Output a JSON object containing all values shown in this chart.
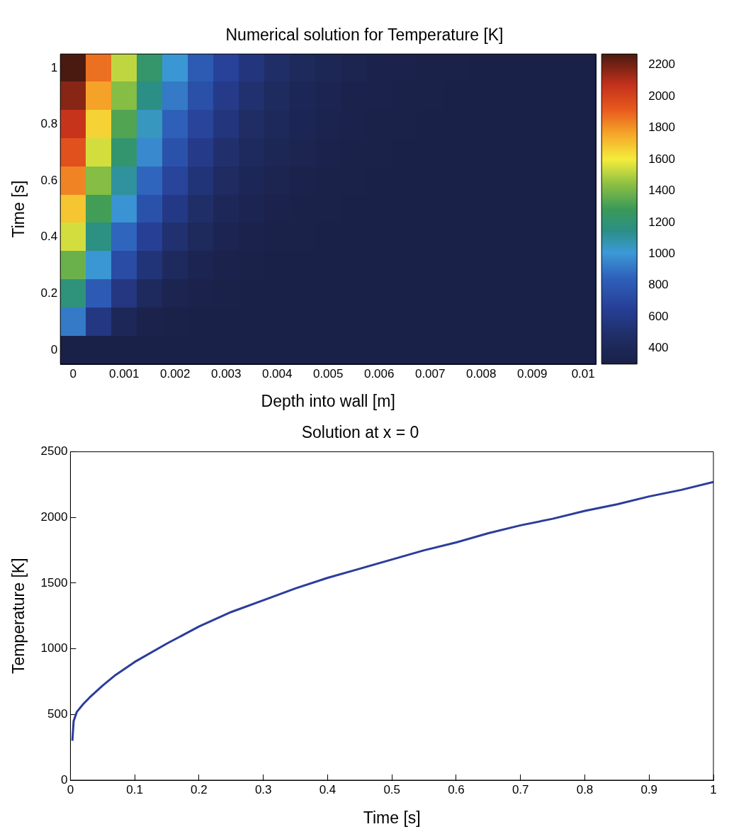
{
  "chart_data": [
    {
      "type": "heatmap",
      "title": "Numerical solution for Temperature [K]",
      "xlabel": "Depth into wall [m]",
      "ylabel": "Time [s]",
      "categories": [
        "0",
        null,
        "0.001",
        null,
        "0.002",
        null,
        "0.003",
        null,
        "0.004",
        null,
        "0.005",
        null,
        "0.006",
        null,
        "0.007",
        null,
        "0.008",
        null,
        "0.009",
        null,
        "0.01"
      ],
      "y_categories": [
        "1",
        null,
        "0.8",
        null,
        "0.6",
        null,
        "0.4",
        null,
        "0.2",
        null,
        "0"
      ],
      "clim": [
        300,
        2270
      ],
      "cticks": [
        400,
        600,
        800,
        1000,
        1200,
        1400,
        1600,
        1800,
        2000,
        2200
      ],
      "cells": [
        [
          2270,
          1870,
          1520,
          1230,
          1000,
          810,
          670,
          560,
          480,
          420,
          380,
          350,
          330,
          320,
          310,
          310,
          300,
          300,
          300,
          300,
          300
        ],
        [
          2170,
          1770,
          1430,
          1150,
          920,
          750,
          610,
          510,
          440,
          390,
          360,
          330,
          320,
          310,
          310,
          300,
          300,
          300,
          300,
          300,
          300
        ],
        [
          2060,
          1660,
          1330,
          1050,
          840,
          680,
          560,
          470,
          410,
          370,
          340,
          320,
          310,
          310,
          300,
          300,
          300,
          300,
          300,
          300,
          300
        ],
        [
          1950,
          1550,
          1220,
          960,
          760,
          610,
          500,
          430,
          380,
          350,
          330,
          310,
          310,
          300,
          300,
          300,
          300,
          300,
          300,
          300,
          300
        ],
        [
          1830,
          1430,
          1110,
          860,
          680,
          540,
          450,
          390,
          350,
          330,
          310,
          310,
          300,
          300,
          300,
          300,
          300,
          300,
          300,
          300,
          300
        ],
        [
          1690,
          1300,
          990,
          760,
          590,
          480,
          400,
          360,
          330,
          310,
          310,
          300,
          300,
          300,
          300,
          300,
          300,
          300,
          300,
          300,
          300
        ],
        [
          1550,
          1160,
          860,
          650,
          510,
          420,
          360,
          330,
          310,
          310,
          300,
          300,
          300,
          300,
          300,
          300,
          300,
          300,
          300,
          300,
          300
        ],
        [
          1380,
          1000,
          730,
          540,
          430,
          360,
          330,
          310,
          300,
          300,
          300,
          300,
          300,
          300,
          300,
          300,
          300,
          300,
          300,
          300,
          300
        ],
        [
          1180,
          810,
          570,
          430,
          350,
          320,
          310,
          300,
          300,
          300,
          300,
          300,
          300,
          300,
          300,
          300,
          300,
          300,
          300,
          300,
          300
        ],
        [
          920,
          580,
          400,
          330,
          310,
          300,
          300,
          300,
          300,
          300,
          300,
          300,
          300,
          300,
          300,
          300,
          300,
          300,
          300,
          300,
          300
        ],
        [
          300,
          300,
          300,
          300,
          300,
          300,
          300,
          300,
          300,
          300,
          300,
          300,
          300,
          300,
          300,
          300,
          300,
          300,
          300,
          300,
          300
        ]
      ],
      "grid": false
    },
    {
      "type": "line",
      "title": "Solution at x = 0",
      "xlabel": "Time [s]",
      "ylabel": "Temperature [K]",
      "x": [
        0.003,
        0.005,
        0.01,
        0.02,
        0.03,
        0.05,
        0.07,
        0.1,
        0.15,
        0.2,
        0.25,
        0.3,
        0.35,
        0.4,
        0.45,
        0.5,
        0.55,
        0.6,
        0.65,
        0.7,
        0.75,
        0.8,
        0.85,
        0.9,
        0.95,
        1
      ],
      "values": [
        300,
        450,
        520,
        580,
        630,
        720,
        800,
        900,
        1040,
        1170,
        1280,
        1370,
        1460,
        1540,
        1610,
        1680,
        1750,
        1810,
        1880,
        1940,
        1990,
        2050,
        2100,
        2160,
        2210,
        2270
      ],
      "color": "#2b3d9c",
      "xlim": [
        0,
        1
      ],
      "xticks": [
        0,
        0.1,
        0.2,
        0.3,
        0.4,
        0.5,
        0.6,
        0.7,
        0.8,
        0.9,
        1
      ],
      "ylim": [
        0,
        2500
      ],
      "yticks": [
        0,
        500,
        1000,
        1500,
        2000,
        2500
      ],
      "grid": false,
      "legend": false,
      "marker": "none",
      "line_style": "solid"
    }
  ]
}
